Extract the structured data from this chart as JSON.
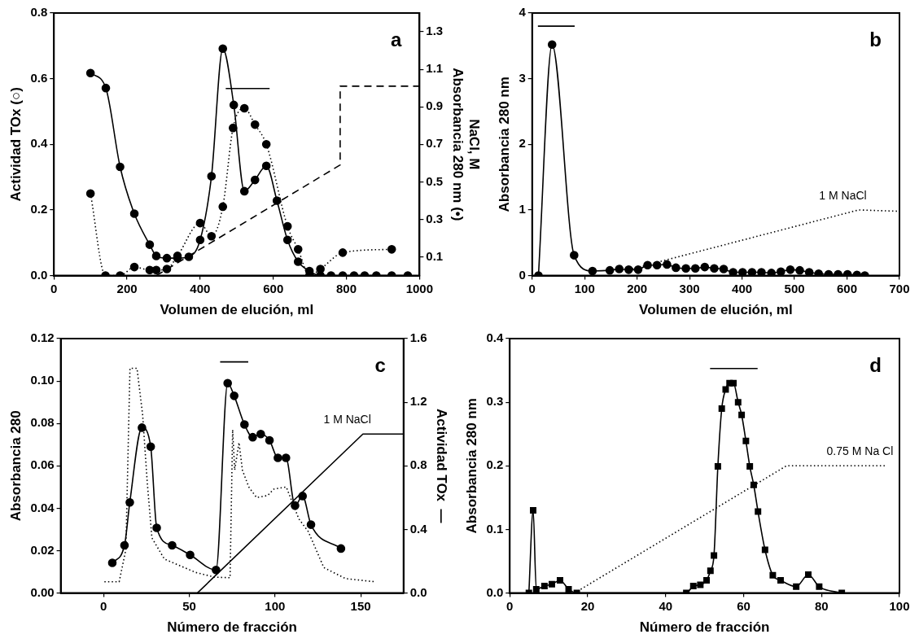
{
  "chart_data": [
    {
      "type": "line",
      "xlabel": "Volumen de elución, ml",
      "ylabel": "Actividad TOx (○)",
      "y2label": "NaCl, M\nAbsorbancia 280 nm (•)",
      "xlim": [
        0,
        1000
      ],
      "xticks": [
        0,
        200,
        400,
        600,
        800,
        1000
      ],
      "ylim": [
        0,
        0.8
      ],
      "yticks": [
        {
          "value": 0,
          "label": "0.0"
        },
        {
          "value": 0.2,
          "label": "0.2"
        },
        {
          "value": 0.4,
          "label": "0.4"
        },
        {
          "value": 0.6,
          "label": "0.6"
        },
        {
          "value": 0.8,
          "label": "0.8"
        }
      ],
      "y2lim": [
        0,
        1.4
      ],
      "y2ticks": [
        0.1,
        0.3,
        0.5,
        0.7,
        0.9,
        1.1,
        1.3
      ],
      "annotations": [
        "a"
      ],
      "series": [
        {
          "color": "#000000",
          "axis": "y2",
          "marker": "circle",
          "line_style": "solid",
          "x": [
            100,
            142,
            181,
            220,
            262,
            280,
            309,
            338,
            369,
            400,
            431,
            462,
            492,
            521,
            550,
            581,
            610,
            639,
            668,
            699,
            729,
            758,
            790,
            821,
            850,
            882,
            924,
            968
          ],
          "values": [
            1.08,
            1.0,
            0.58,
            0.33,
            0.165,
            0.105,
            0.093,
            0.093,
            0.1,
            0.19,
            0.53,
            1.21,
            0.91,
            0.45,
            0.51,
            0.585,
            0.4,
            0.19,
            0.074,
            0.024,
            0,
            0,
            0,
            0,
            0,
            0,
            0,
            0
          ]
        },
        {
          "color": "#000000",
          "marker": "circle",
          "line_style": "dotted",
          "x": [
            100,
            141,
            181,
            220,
            262,
            280,
            309,
            338,
            400,
            431,
            462,
            490,
            521,
            550,
            581,
            639,
            668,
            699,
            729,
            790,
            924
          ],
          "values": [
            0.25,
            0,
            0,
            0.026,
            0.017,
            0.017,
            0.02,
            0.06,
            0.16,
            0.12,
            0.21,
            0.45,
            0.51,
            0.46,
            0.4,
            0.15,
            0.08,
            0,
            0.02,
            0.07,
            0.08
          ]
        },
        {
          "color": "#000000",
          "axis": "y2",
          "marker": "none",
          "line_style": "dashed",
          "x": [
            280,
            783,
            783,
            1000
          ],
          "values": [
            0,
            0.59,
            1.01,
            1.01
          ]
        },
        {
          "color": "#000000",
          "marker": "none",
          "line_style": "solid",
          "x": [
            470,
            590
          ],
          "values": [
            0.57,
            0.57
          ]
        }
      ]
    },
    {
      "type": "line",
      "xlabel": "Volumen de elución, ml",
      "ylabel": "Absorbancia 280 nm",
      "xlim": [
        0,
        700
      ],
      "xticks": [
        0,
        100,
        200,
        300,
        400,
        500,
        600,
        700
      ],
      "ylim": [
        0,
        4
      ],
      "yticks": [
        0,
        1,
        2,
        3,
        4
      ],
      "annotations": [
        "b",
        {
          "text": "1 M NaCl",
          "x": 622,
          "y": 1.0
        }
      ],
      "series": [
        {
          "color": "#000000",
          "marker": "circle",
          "line_style": "solid",
          "x": [
            12,
            38,
            80,
            115,
            148,
            166,
            184,
            202,
            220,
            238,
            257,
            274,
            293,
            311,
            329,
            347,
            365,
            383,
            401,
            419,
            437,
            456,
            474,
            492,
            510,
            528,
            546,
            565,
            583,
            601,
            619,
            634
          ],
          "values": [
            0,
            3.52,
            0.31,
            0.07,
            0.08,
            0.1,
            0.09,
            0.09,
            0.16,
            0.16,
            0.17,
            0.12,
            0.11,
            0.11,
            0.13,
            0.11,
            0.1,
            0.05,
            0.05,
            0.05,
            0.05,
            0.04,
            0.06,
            0.09,
            0.08,
            0.05,
            0.03,
            0.02,
            0.02,
            0.02,
            0.01,
            0
          ]
        },
        {
          "color": "#000000",
          "marker": "none",
          "line_style": "dotted",
          "x": [
            184,
            622,
            700
          ],
          "values": [
            0.09,
            1.0,
            0.98
          ]
        },
        {
          "color": "#000000",
          "marker": "none",
          "line_style": "solid",
          "x": [
            11,
            81
          ],
          "values": [
            3.8,
            3.8
          ]
        }
      ]
    },
    {
      "type": "line",
      "xlabel": "Número de fracción",
      "ylabel": "Absorbancia 280",
      "y2label": "Actividad TOx  —",
      "xlim": [
        -25,
        175
      ],
      "xticks": [
        0,
        50,
        100,
        150
      ],
      "ylim": [
        0,
        0.12
      ],
      "yticks": [
        {
          "value": 0,
          "label": "0.00"
        },
        {
          "value": 0.02,
          "label": "0.02"
        },
        {
          "value": 0.04,
          "label": "0.04"
        },
        {
          "value": 0.06,
          "label": "0.06"
        },
        {
          "value": 0.08,
          "label": "0.08"
        },
        {
          "value": 0.1,
          "label": "0.10"
        },
        {
          "value": 0.12,
          "label": "0.12"
        }
      ],
      "y2lim": [
        0,
        1.6
      ],
      "y2ticks": [
        {
          "value": 0,
          "label": "0.0"
        },
        {
          "value": 0.4,
          "label": "0.4"
        },
        {
          "value": 0.8,
          "label": "0.8"
        },
        {
          "value": 1.2,
          "label": "1.2"
        },
        {
          "value": 1.6,
          "label": "1.6"
        }
      ],
      "annotations": [
        "c",
        {
          "text": "1 M NaCl",
          "x": 151.3,
          "y": 0.075
        }
      ],
      "series": [
        {
          "color": "#000000",
          "axis": "y2",
          "marker": "circle",
          "line_style": "solid",
          "x": [
            5.1,
            12.2,
            15.3,
            22.4,
            27.5,
            31,
            40,
            50.5,
            65.6,
            72.4,
            76.2,
            82.2,
            87,
            91.7,
            96.8,
            101.7,
            106.4,
            111.7,
            116.1,
            121,
            138.5
          ],
          "values": [
            0.19,
            0.3,
            0.57,
            1.04,
            0.92,
            0.41,
            0.3,
            0.24,
            0.145,
            1.32,
            1.24,
            1.06,
            0.98,
            1.0,
            0.96,
            0.85,
            0.85,
            0.55,
            0.61,
            0.43,
            0.28
          ]
        },
        {
          "color": "#000000",
          "marker": "none",
          "line_style": "dotted",
          "x": [
            0.5,
            9.1,
            13,
            15.4,
            19.5,
            22.8,
            25.5,
            28.2,
            35.5,
            53.8,
            64.7,
            73.8,
            74.7,
            75.3,
            76.5,
            79,
            81,
            84.7,
            89.3,
            95.7,
            99.3,
            106.6,
            113.9,
            119.4,
            128.5,
            141.2,
            158.6
          ],
          "values": [
            0.0053,
            0.0053,
            0.0205,
            0.106,
            0.106,
            0.084,
            0.052,
            0.026,
            0.016,
            0.0097,
            0.0075,
            0.0072,
            0.049,
            0.077,
            0.058,
            0.071,
            0.058,
            0.05,
            0.045,
            0.046,
            0.049,
            0.05,
            0.035,
            0.029,
            0.012,
            0.0068,
            0.0053
          ]
        },
        {
          "color": "#000000",
          "axis": "y2",
          "marker": "none",
          "line_style": "solid",
          "x": [
            54.7,
            151.3,
            175
          ],
          "values": [
            0,
            1.0,
            1.0
          ]
        },
        {
          "color": "#000000",
          "marker": "none",
          "line_style": "solid",
          "x": [
            68,
            84.4
          ],
          "values": [
            0.109,
            0.109
          ]
        }
      ]
    },
    {
      "type": "line",
      "xlabel": "Número de fracción",
      "ylabel": "Absorbancia 280 nm",
      "xlim": [
        0,
        100
      ],
      "xticks": [
        0,
        20,
        40,
        60,
        80,
        100
      ],
      "ylim": [
        0,
        0.4
      ],
      "yticks": [
        {
          "value": 0,
          "label": "0.0"
        },
        {
          "value": 0.1,
          "label": "0.1"
        },
        {
          "value": 0.2,
          "label": "0.2"
        },
        {
          "value": 0.3,
          "label": "0.3"
        },
        {
          "value": 0.4,
          "label": "0.4"
        }
      ],
      "annotations": [
        "d",
        {
          "text": "0.75 M Na Cl",
          "x": 96.3,
          "y": 0.2
        }
      ],
      "series": [
        {
          "color": "#000000",
          "marker": "square",
          "line_style": "solid",
          "x": [
            4.9,
            6,
            6.8,
            8.9,
            10.8,
            12.9,
            15.1,
            17.2,
            45.3,
            47.1,
            48.9,
            50.5,
            51.5,
            52.4,
            53.4,
            54.4,
            55.4,
            56.4,
            57.4,
            58.6,
            59.5,
            60.6,
            61.6,
            62.6,
            63.7,
            65.5,
            67.5,
            69.5,
            73.5,
            76.6,
            79.4,
            85.2
          ],
          "values": [
            0,
            0.13,
            0.006,
            0.011,
            0.014,
            0.02,
            0.006,
            0,
            0,
            0.011,
            0.013,
            0.02,
            0.035,
            0.059,
            0.199,
            0.29,
            0.32,
            0.33,
            0.33,
            0.3,
            0.28,
            0.239,
            0.199,
            0.17,
            0.128,
            0.068,
            0.028,
            0.02,
            0.01,
            0.029,
            0.01,
            0
          ]
        },
        {
          "color": "#000000",
          "marker": "none",
          "line_style": "dotted",
          "x": [
            16.6,
            71,
            96.3
          ],
          "values": [
            0,
            0.2,
            0.2
          ]
        },
        {
          "color": "#000000",
          "marker": "none",
          "line_style": "solid",
          "x": [
            51.4,
            63.6
          ],
          "values": [
            0.353,
            0.353
          ]
        }
      ]
    }
  ]
}
